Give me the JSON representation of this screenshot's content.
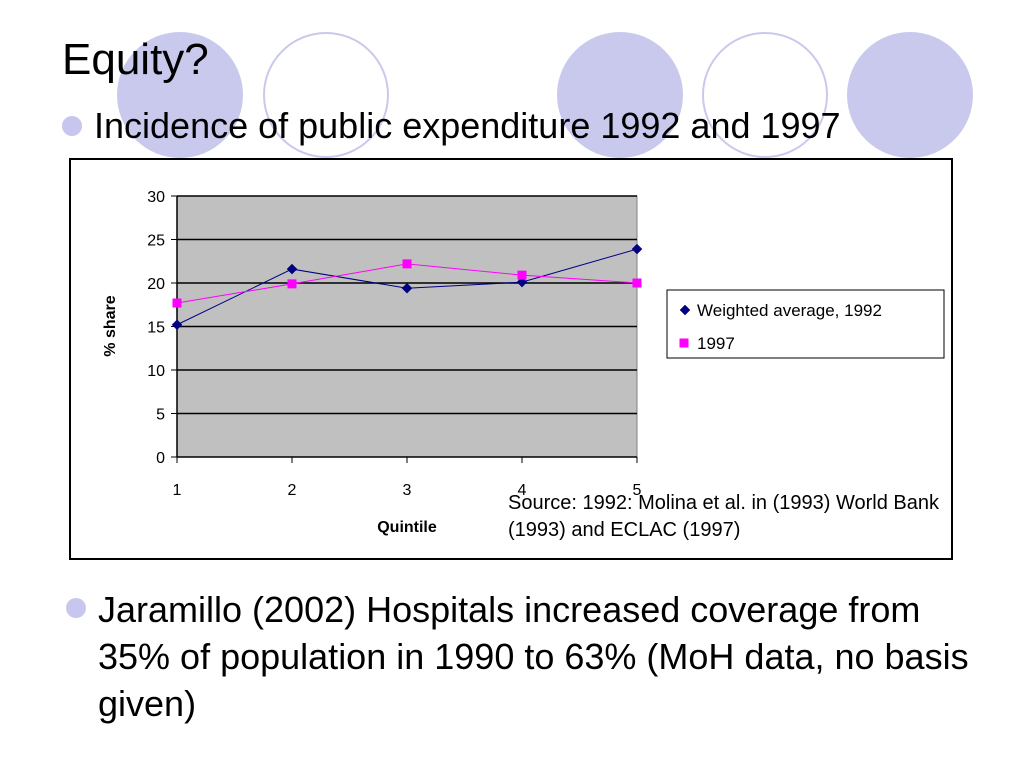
{
  "slide": {
    "title": "Equity?",
    "bullets": [
      "Incidence of public expenditure 1992 and 1997",
      "Jaramillo (2002) Hospitals increased coverage from 35% of population in 1990 to 63% (MoH data, no basis given)"
    ],
    "source_note": "Source: 1992: Molina et al. in (1993) World Bank (1993) and ECLAC (1997)"
  },
  "colors": {
    "bullet": "#c6c6ef",
    "deco_circle_fill": "#c9c9ee",
    "deco_circle_stroke": "#c9c9ee",
    "plot_background": "#c0c0c0",
    "gridline": "#000000",
    "series_1992": "#000080",
    "series_1997": "#ff00ff"
  },
  "chart_data": {
    "type": "line",
    "xlabel": "Quintile",
    "ylabel": "% share",
    "x": [
      1,
      2,
      3,
      4,
      5
    ],
    "x_tick_labels": [
      "1",
      "2",
      "3",
      "4",
      "5"
    ],
    "ylim": [
      0,
      30
    ],
    "y_ticks": [
      0,
      5,
      10,
      15,
      20,
      25,
      30
    ],
    "grid": true,
    "legend_position": "right",
    "series": [
      {
        "name": "Weighted average, 1992",
        "marker": "diamond",
        "color": "#000080",
        "values": [
          15.2,
          21.6,
          19.4,
          20.1,
          23.9
        ]
      },
      {
        "name": "1997",
        "marker": "square",
        "color": "#ff00ff",
        "values": [
          17.7,
          19.9,
          22.2,
          20.9,
          20.0
        ]
      }
    ]
  }
}
